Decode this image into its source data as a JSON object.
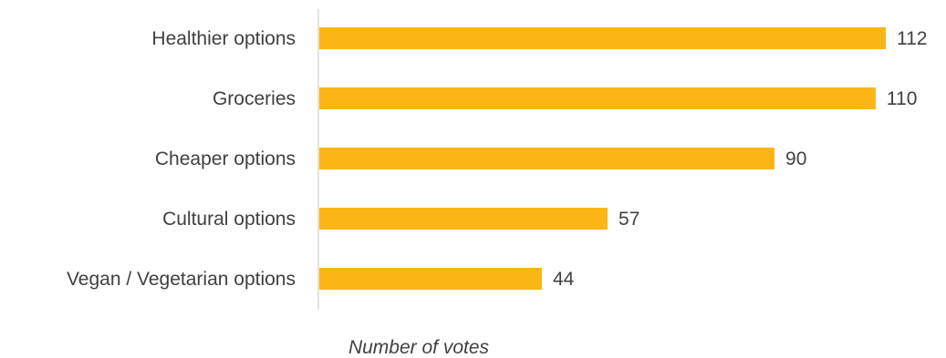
{
  "chart_data": {
    "type": "bar",
    "orientation": "horizontal",
    "categories": [
      "Healthier options",
      "Groceries",
      "Cheaper options",
      "Cultural options",
      "Vegan / Vegetarian options"
    ],
    "values": [
      112,
      110,
      90,
      57,
      44
    ],
    "xlabel": "Number of votes",
    "ylabel": "",
    "title": "",
    "xlim": [
      0,
      112
    ],
    "grid": false,
    "data_labels": true,
    "bar_color": "#FBB615",
    "axis_color": "#D9D9D9",
    "text_color": "#404040"
  }
}
